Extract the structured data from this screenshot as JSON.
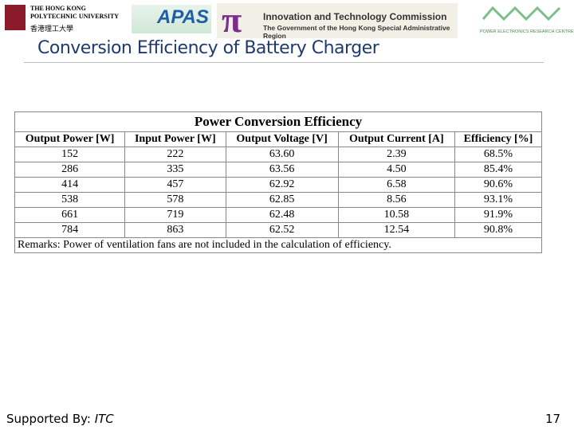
{
  "header": {
    "university": "THE HONG KONG POLYTECHNIC UNIVERSITY",
    "university_chinese": "香港理工大學",
    "apas": "APAS",
    "commission": "Innovation and Technology Commission",
    "government": "The Government of the Hong Kong Special Administrative Region",
    "centre": "POWER ELECTRONICS RESEARCH CENTRE",
    "title": "Conversion Efficiency of Battery Charger"
  },
  "table": {
    "title": "Power Conversion Efficiency",
    "columns": [
      "Output Power [W]",
      "Input Power [W]",
      "Output Voltage [V]",
      "Output Current [A]",
      "Efficiency [%]"
    ],
    "rows": [
      [
        "152",
        "222",
        "63.60",
        "2.39",
        "68.5%"
      ],
      [
        "286",
        "335",
        "63.56",
        "4.50",
        "85.4%"
      ],
      [
        "414",
        "457",
        "62.92",
        "6.58",
        "90.6%"
      ],
      [
        "538",
        "578",
        "62.85",
        "8.56",
        "93.1%"
      ],
      [
        "661",
        "719",
        "62.48",
        "10.58",
        "91.9%"
      ],
      [
        "784",
        "863",
        "62.52",
        "12.54",
        "90.8%"
      ]
    ],
    "remarks": "Remarks: Power of ventilation fans are not included in the calculation of efficiency."
  },
  "footer": {
    "supported_by": "Supported By: ",
    "sponsor": "ITC",
    "page": "17"
  }
}
